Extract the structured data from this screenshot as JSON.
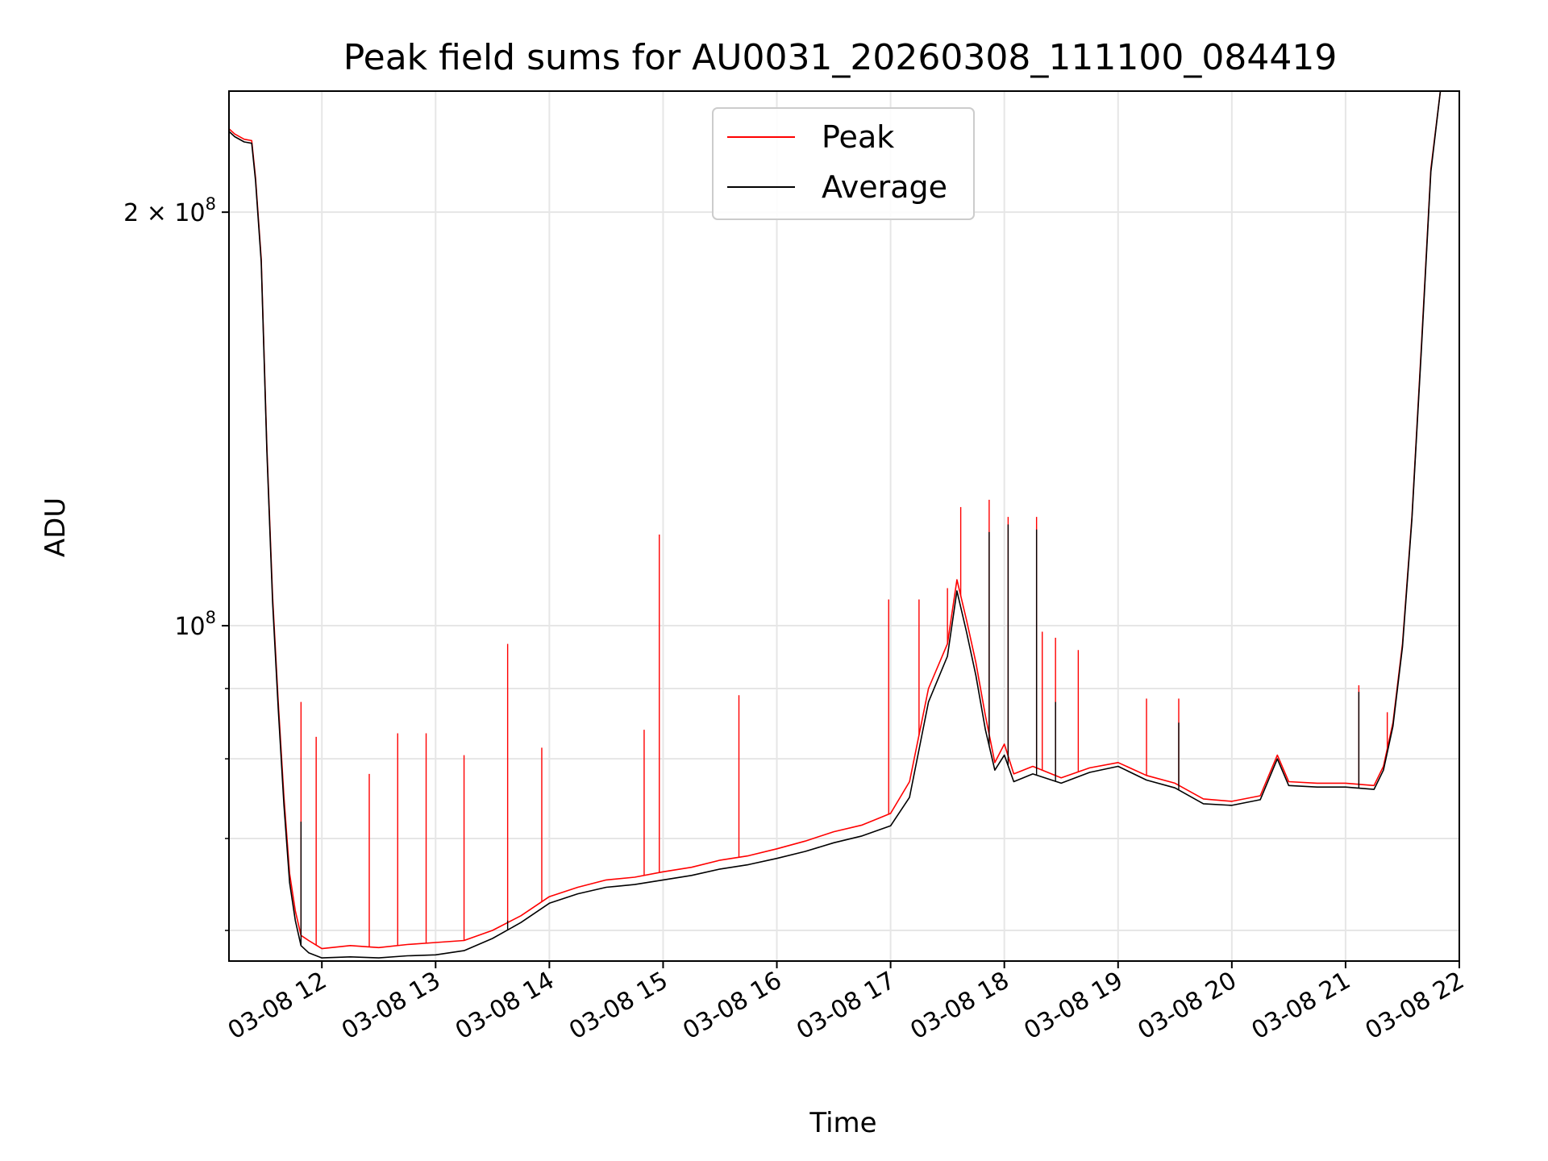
{
  "chart_data": {
    "type": "line",
    "title": "Peak field sums for AU0031_20260308_111100_084419",
    "xlabel": "Time",
    "ylabel": "ADU",
    "yscale": "log",
    "xlim": [
      "2026-03-08 11:11",
      "2026-03-08 22:00"
    ],
    "ylim": [
      57000000,
      245000000
    ],
    "grid": true,
    "legend_position": "top-center",
    "x_ticks": [
      {
        "time": "2026-03-08 12:00",
        "label": "03-08 12"
      },
      {
        "time": "2026-03-08 13:00",
        "label": "03-08 13"
      },
      {
        "time": "2026-03-08 14:00",
        "label": "03-08 14"
      },
      {
        "time": "2026-03-08 15:00",
        "label": "03-08 15"
      },
      {
        "time": "2026-03-08 16:00",
        "label": "03-08 16"
      },
      {
        "time": "2026-03-08 17:00",
        "label": "03-08 17"
      },
      {
        "time": "2026-03-08 18:00",
        "label": "03-08 18"
      },
      {
        "time": "2026-03-08 19:00",
        "label": "03-08 19"
      },
      {
        "time": "2026-03-08 20:00",
        "label": "03-08 20"
      },
      {
        "time": "2026-03-08 21:00",
        "label": "03-08 21"
      },
      {
        "time": "2026-03-08 22:00",
        "label": "03-08 22"
      }
    ],
    "y_major_ticks": [
      {
        "value": 100000000,
        "base": "10",
        "exp": "8"
      },
      {
        "value": 200000000,
        "base": "2 × 10",
        "exp": "8"
      }
    ],
    "y_minor_ticks": [
      60000000,
      70000000,
      80000000,
      90000000
    ],
    "series": [
      {
        "name": "Peak",
        "color": "#ff0000",
        "points": [
          [
            "2026-03-08 11:11",
            230000000
          ],
          [
            "2026-03-08 11:14",
            228000000
          ],
          [
            "2026-03-08 11:19",
            226000000
          ],
          [
            "2026-03-08 11:23",
            225500000
          ],
          [
            "2026-03-08 11:25",
            212000000
          ],
          [
            "2026-03-08 11:28",
            185000000
          ],
          [
            "2026-03-08 11:31",
            135000000
          ],
          [
            "2026-03-08 11:34",
            105000000
          ],
          [
            "2026-03-08 11:37",
            88000000
          ],
          [
            "2026-03-08 11:40",
            75000000
          ],
          [
            "2026-03-08 11:43",
            66000000
          ],
          [
            "2026-03-08 11:46",
            62000000
          ],
          [
            "2026-03-08 11:49",
            59500000
          ],
          [
            "2026-03-08 11:53",
            59000000
          ],
          [
            "2026-03-08 12:00",
            58200000
          ],
          [
            "2026-03-08 12:15",
            58500000
          ],
          [
            "2026-03-08 12:30",
            58300000
          ],
          [
            "2026-03-08 12:45",
            58600000
          ],
          [
            "2026-03-08 13:00",
            58800000
          ],
          [
            "2026-03-08 13:15",
            59000000
          ],
          [
            "2026-03-08 13:30",
            60000000
          ],
          [
            "2026-03-08 13:45",
            61500000
          ],
          [
            "2026-03-08 14:00",
            63500000
          ],
          [
            "2026-03-08 14:15",
            64500000
          ],
          [
            "2026-03-08 14:30",
            65300000
          ],
          [
            "2026-03-08 14:45",
            65600000
          ],
          [
            "2026-03-08 15:00",
            66200000
          ],
          [
            "2026-03-08 15:15",
            66700000
          ],
          [
            "2026-03-08 15:30",
            67500000
          ],
          [
            "2026-03-08 15:45",
            68000000
          ],
          [
            "2026-03-08 16:00",
            68800000
          ],
          [
            "2026-03-08 16:15",
            69700000
          ],
          [
            "2026-03-08 16:30",
            70800000
          ],
          [
            "2026-03-08 16:45",
            71600000
          ],
          [
            "2026-03-08 17:00",
            73000000
          ],
          [
            "2026-03-08 17:10",
            77000000
          ],
          [
            "2026-03-08 17:20",
            90000000
          ],
          [
            "2026-03-08 17:30",
            97000000
          ],
          [
            "2026-03-08 17:35",
            108000000
          ],
          [
            "2026-03-08 17:40",
            101000000
          ],
          [
            "2026-03-08 17:45",
            94000000
          ],
          [
            "2026-03-08 17:50",
            86000000
          ],
          [
            "2026-03-08 17:55",
            79500000
          ],
          [
            "2026-03-08 18:00",
            82000000
          ],
          [
            "2026-03-08 18:05",
            78000000
          ],
          [
            "2026-03-08 18:15",
            79000000
          ],
          [
            "2026-03-08 18:30",
            77500000
          ],
          [
            "2026-03-08 18:45",
            78800000
          ],
          [
            "2026-03-08 19:00",
            79500000
          ],
          [
            "2026-03-08 19:15",
            77800000
          ],
          [
            "2026-03-08 19:30",
            76800000
          ],
          [
            "2026-03-08 19:45",
            74800000
          ],
          [
            "2026-03-08 20:00",
            74500000
          ],
          [
            "2026-03-08 20:15",
            75200000
          ],
          [
            "2026-03-08 20:24",
            80500000
          ],
          [
            "2026-03-08 20:30",
            77000000
          ],
          [
            "2026-03-08 20:45",
            76800000
          ],
          [
            "2026-03-08 21:00",
            76800000
          ],
          [
            "2026-03-08 21:15",
            76500000
          ],
          [
            "2026-03-08 21:20",
            79000000
          ],
          [
            "2026-03-08 21:25",
            85000000
          ],
          [
            "2026-03-08 21:30",
            97000000
          ],
          [
            "2026-03-08 21:35",
            120000000
          ],
          [
            "2026-03-08 21:40",
            160000000
          ],
          [
            "2026-03-08 21:45",
            215000000
          ],
          [
            "2026-03-08 21:50",
            245000000
          ]
        ],
        "spikes": [
          [
            "2026-03-08 11:49",
            88000000
          ],
          [
            "2026-03-08 11:57",
            83000000
          ],
          [
            "2026-03-08 12:25",
            78000000
          ],
          [
            "2026-03-08 12:40",
            83500000
          ],
          [
            "2026-03-08 12:55",
            83500000
          ],
          [
            "2026-03-08 13:15",
            80500000
          ],
          [
            "2026-03-08 13:38",
            97000000
          ],
          [
            "2026-03-08 13:56",
            81500000
          ],
          [
            "2026-03-08 14:50",
            84000000
          ],
          [
            "2026-03-08 14:58",
            116500000
          ],
          [
            "2026-03-08 15:40",
            89000000
          ],
          [
            "2026-03-08 16:59",
            104500000
          ],
          [
            "2026-03-08 17:15",
            104500000
          ],
          [
            "2026-03-08 17:30",
            106500000
          ],
          [
            "2026-03-08 17:37",
            122000000
          ],
          [
            "2026-03-08 17:52",
            123500000
          ],
          [
            "2026-03-08 18:02",
            120000000
          ],
          [
            "2026-03-08 18:17",
            120000000
          ],
          [
            "2026-03-08 18:20",
            99000000
          ],
          [
            "2026-03-08 18:27",
            98000000
          ],
          [
            "2026-03-08 18:39",
            96000000
          ],
          [
            "2026-03-08 19:15",
            88500000
          ],
          [
            "2026-03-08 19:32",
            88500000
          ],
          [
            "2026-03-08 21:07",
            90500000
          ],
          [
            "2026-03-08 21:22",
            86500000
          ]
        ]
      },
      {
        "name": "Average",
        "color": "#000000",
        "points": [
          [
            "2026-03-08 11:11",
            229000000
          ],
          [
            "2026-03-08 11:14",
            227000000
          ],
          [
            "2026-03-08 11:19",
            225000000
          ],
          [
            "2026-03-08 11:23",
            224500000
          ],
          [
            "2026-03-08 11:25",
            211000000
          ],
          [
            "2026-03-08 11:28",
            184000000
          ],
          [
            "2026-03-08 11:31",
            134000000
          ],
          [
            "2026-03-08 11:34",
            104000000
          ],
          [
            "2026-03-08 11:37",
            87000000
          ],
          [
            "2026-03-08 11:40",
            74000000
          ],
          [
            "2026-03-08 11:43",
            65000000
          ],
          [
            "2026-03-08 11:46",
            61000000
          ],
          [
            "2026-03-08 11:49",
            58500000
          ],
          [
            "2026-03-08 11:53",
            57800000
          ],
          [
            "2026-03-08 12:00",
            57300000
          ],
          [
            "2026-03-08 12:15",
            57400000
          ],
          [
            "2026-03-08 12:30",
            57300000
          ],
          [
            "2026-03-08 12:45",
            57500000
          ],
          [
            "2026-03-08 13:00",
            57600000
          ],
          [
            "2026-03-08 13:15",
            58000000
          ],
          [
            "2026-03-08 13:30",
            59200000
          ],
          [
            "2026-03-08 13:45",
            60800000
          ],
          [
            "2026-03-08 14:00",
            62800000
          ],
          [
            "2026-03-08 14:15",
            63800000
          ],
          [
            "2026-03-08 14:30",
            64500000
          ],
          [
            "2026-03-08 14:45",
            64800000
          ],
          [
            "2026-03-08 15:00",
            65300000
          ],
          [
            "2026-03-08 15:15",
            65800000
          ],
          [
            "2026-03-08 15:30",
            66500000
          ],
          [
            "2026-03-08 15:45",
            67000000
          ],
          [
            "2026-03-08 16:00",
            67700000
          ],
          [
            "2026-03-08 16:15",
            68500000
          ],
          [
            "2026-03-08 16:30",
            69500000
          ],
          [
            "2026-03-08 16:45",
            70300000
          ],
          [
            "2026-03-08 17:00",
            71500000
          ],
          [
            "2026-03-08 17:10",
            75000000
          ],
          [
            "2026-03-08 17:20",
            88000000
          ],
          [
            "2026-03-08 17:30",
            95000000
          ],
          [
            "2026-03-08 17:35",
            106000000
          ],
          [
            "2026-03-08 17:40",
            99000000
          ],
          [
            "2026-03-08 17:45",
            92000000
          ],
          [
            "2026-03-08 17:50",
            84000000
          ],
          [
            "2026-03-08 17:55",
            78500000
          ],
          [
            "2026-03-08 18:00",
            80500000
          ],
          [
            "2026-03-08 18:05",
            77000000
          ],
          [
            "2026-03-08 18:15",
            78000000
          ],
          [
            "2026-03-08 18:30",
            76800000
          ],
          [
            "2026-03-08 18:45",
            78200000
          ],
          [
            "2026-03-08 19:00",
            79000000
          ],
          [
            "2026-03-08 19:15",
            77200000
          ],
          [
            "2026-03-08 19:30",
            76200000
          ],
          [
            "2026-03-08 19:45",
            74200000
          ],
          [
            "2026-03-08 20:00",
            74000000
          ],
          [
            "2026-03-08 20:15",
            74700000
          ],
          [
            "2026-03-08 20:24",
            80000000
          ],
          [
            "2026-03-08 20:30",
            76500000
          ],
          [
            "2026-03-08 20:45",
            76300000
          ],
          [
            "2026-03-08 21:00",
            76300000
          ],
          [
            "2026-03-08 21:15",
            76000000
          ],
          [
            "2026-03-08 21:20",
            78500000
          ],
          [
            "2026-03-08 21:25",
            84500000
          ],
          [
            "2026-03-08 21:30",
            96500000
          ],
          [
            "2026-03-08 21:35",
            119500000
          ],
          [
            "2026-03-08 21:40",
            159000000
          ],
          [
            "2026-03-08 21:45",
            214000000
          ],
          [
            "2026-03-08 21:50",
            245000000
          ]
        ],
        "spikes": [
          [
            "2026-03-08 11:49",
            72000000
          ],
          [
            "2026-03-08 13:38",
            61000000
          ],
          [
            "2026-03-08 17:52",
            117000000
          ],
          [
            "2026-03-08 18:02",
            118500000
          ],
          [
            "2026-03-08 18:17",
            117500000
          ],
          [
            "2026-03-08 18:27",
            88000000
          ],
          [
            "2026-03-08 19:32",
            85000000
          ],
          [
            "2026-03-08 21:07",
            89500000
          ]
        ]
      }
    ]
  }
}
